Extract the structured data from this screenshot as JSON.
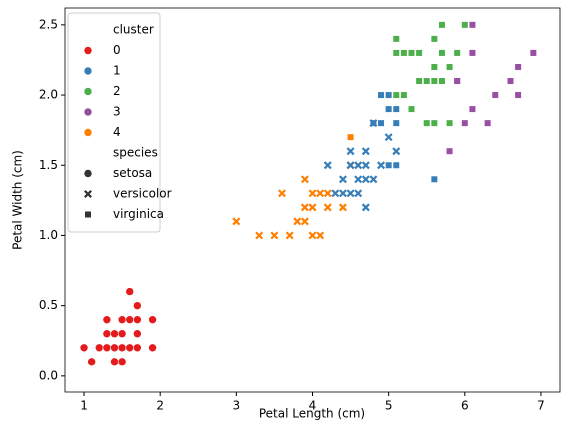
{
  "chart_data": {
    "type": "scatter",
    "x_label": "Petal Length (cm)",
    "y_label": "Petal Width (cm)",
    "xlim": [
      0.75,
      7.25
    ],
    "ylim": [
      -0.115,
      2.62
    ],
    "xticks": [
      1,
      2,
      3,
      4,
      5,
      6,
      7
    ],
    "yticks": [
      {
        "value": 0,
        "label": "0.0"
      },
      0.5,
      {
        "value": 1,
        "label": "1.0"
      },
      1.5,
      {
        "value": 2,
        "label": "2.0"
      },
      2.5
    ],
    "legend_corner": "upper left",
    "hue": {
      "title": "cluster",
      "levels": [
        {
          "name": "0",
          "color": "#e41a1c"
        },
        {
          "name": "1",
          "color": "#377eb8"
        },
        {
          "name": "2",
          "color": "#4daf4a"
        },
        {
          "name": "3",
          "color": "#984ea3"
        },
        {
          "name": "4",
          "color": "#ff7f00"
        }
      ]
    },
    "style": {
      "title": "species",
      "levels": [
        {
          "name": "setosa",
          "marker": "circle"
        },
        {
          "name": "versicolor",
          "marker": "x"
        },
        {
          "name": "virginica",
          "marker": "square"
        }
      ]
    },
    "series": [
      {
        "cluster": 0,
        "species": 0,
        "x": [
          1.0,
          1.1,
          1.2,
          1.3,
          1.3,
          1.3,
          1.4,
          1.4,
          1.4,
          1.5,
          1.5,
          1.5,
          1.5,
          1.6,
          1.6,
          1.6,
          1.7,
          1.7,
          1.7,
          1.7,
          1.9,
          1.9
        ],
        "values": [
          0.2,
          0.1,
          0.2,
          0.2,
          0.3,
          0.4,
          0.1,
          0.2,
          0.3,
          0.1,
          0.2,
          0.3,
          0.4,
          0.2,
          0.4,
          0.6,
          0.2,
          0.3,
          0.4,
          0.5,
          0.2,
          0.4
        ]
      },
      {
        "cluster": 4,
        "species": 1,
        "x": [
          3.0,
          3.3,
          3.5,
          3.7,
          3.6,
          3.8,
          3.9,
          3.9,
          3.9,
          4.0,
          4.0,
          4.0,
          4.1,
          4.1,
          4.2,
          4.2,
          4.4,
          4.5
        ],
        "values": [
          1.1,
          1.0,
          1.0,
          1.0,
          1.3,
          1.1,
          1.1,
          1.2,
          1.4,
          1.0,
          1.2,
          1.3,
          1.0,
          1.3,
          1.3,
          1.2,
          1.2,
          1.5
        ]
      },
      {
        "cluster": 1,
        "species": 1,
        "x": [
          4.2,
          4.3,
          4.4,
          4.4,
          4.5,
          4.5,
          4.5,
          4.6,
          4.6,
          4.6,
          4.7,
          4.7,
          4.7,
          4.7,
          4.8,
          4.8,
          4.9,
          5.0,
          5.1
        ],
        "values": [
          1.5,
          1.3,
          1.3,
          1.4,
          1.3,
          1.5,
          1.6,
          1.3,
          1.4,
          1.5,
          1.2,
          1.4,
          1.5,
          1.6,
          1.4,
          1.8,
          1.5,
          1.7,
          1.6
        ]
      },
      {
        "cluster": 4,
        "species": 2,
        "x": [
          4.5
        ],
        "values": [
          1.7
        ]
      },
      {
        "cluster": 1,
        "species": 2,
        "x": [
          4.8,
          4.9,
          4.9,
          5.0,
          5.0,
          5.0,
          5.1,
          5.1,
          5.1,
          5.6
        ],
        "values": [
          1.8,
          1.8,
          2.0,
          1.5,
          2.0,
          1.9,
          1.5,
          1.8,
          1.9,
          1.4
        ]
      },
      {
        "cluster": 2,
        "species": 2,
        "x": [
          5.1,
          5.1,
          5.1,
          5.2,
          5.2,
          5.3,
          5.3,
          5.4,
          5.4,
          5.5,
          5.5,
          5.6,
          5.6,
          5.6,
          5.6,
          5.7,
          5.7,
          5.7,
          5.8,
          5.8,
          5.9,
          5.9,
          6.0
        ],
        "values": [
          2.0,
          2.3,
          2.4,
          2.0,
          2.3,
          2.3,
          1.9,
          2.1,
          2.3,
          1.8,
          2.1,
          1.8,
          2.1,
          2.2,
          2.4,
          2.1,
          2.3,
          2.5,
          1.8,
          2.2,
          2.1,
          2.3,
          2.5
        ]
      },
      {
        "cluster": 3,
        "species": 2,
        "x": [
          5.8,
          5.9,
          6.0,
          6.1,
          6.1,
          6.1,
          6.3,
          6.4,
          6.6,
          6.7,
          6.7,
          6.9
        ],
        "values": [
          1.6,
          2.1,
          1.8,
          1.9,
          2.3,
          2.5,
          1.8,
          2.0,
          2.1,
          2.0,
          2.2,
          2.3
        ]
      }
    ]
  }
}
